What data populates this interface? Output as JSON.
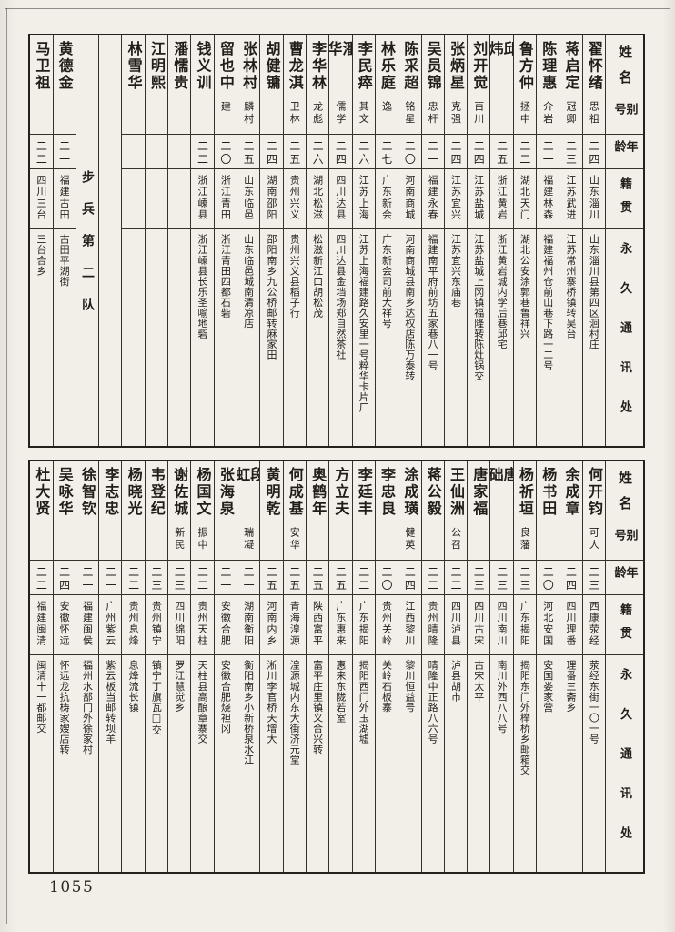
{
  "page": {
    "number": "1055"
  },
  "colors": {
    "paper": "#f2efe8",
    "ink": "#211e1a",
    "line": "#35322c",
    "frame": "#24211c"
  },
  "headers": {
    "name": "姓名",
    "alias": "别号",
    "age": "年龄",
    "native": "籍贯",
    "address": "永久通讯处"
  },
  "tables": [
    {
      "id": 0,
      "columns": [
        {
          "type": "person",
          "name": "翟怀绪",
          "alias": "思祖",
          "age": "二四",
          "native": "山东淄川",
          "address": "山东淄川县第四区洄村庄"
        },
        {
          "type": "person",
          "name": "蒋启定",
          "alias": "冠卿",
          "age": "二三",
          "native": "江苏武进",
          "address": "江苏常州寨桥镇转吴台"
        },
        {
          "type": "person",
          "name": "陈理惠",
          "alias": "介岩",
          "age": "二一",
          "native": "福建林森",
          "address": "福建福州仓前山巷下路一二号"
        },
        {
          "type": "person",
          "name": "鲁方仲",
          "alias": "拯中",
          "age": "二二",
          "native": "湖北天门",
          "address": "湖北公安涂郭巷鲁祥兴"
        },
        {
          "type": "person",
          "name": "邱炜",
          "alias": "",
          "age": "二五",
          "native": "浙江黄岩",
          "address": "浙江黄岩城内学后巷邱宅"
        },
        {
          "type": "person",
          "name": "刘开觉",
          "alias": "百川",
          "age": "二四",
          "native": "江苏盐城",
          "address": "江苏盐城上冈镇福隆转陈灶锅交"
        },
        {
          "type": "person",
          "name": "张炳星",
          "alias": "克强",
          "age": "二四",
          "native": "江苏宜兴",
          "address": "江苏宜兴东庙巷"
        },
        {
          "type": "person",
          "name": "吴员锦",
          "alias": "忠杆",
          "age": "二一",
          "native": "福建永春",
          "address": "福建南平府前坊五家巷八一号"
        },
        {
          "type": "person",
          "name": "陈采超",
          "alias": "铭星",
          "age": "二〇",
          "native": "河南商城",
          "address": "河南商城县南乡达权店陈万泰转"
        },
        {
          "type": "person",
          "name": "林乐庭",
          "alias": "逸",
          "age": "二七",
          "native": "广东新会",
          "address": "广东新会司前大祥号"
        },
        {
          "type": "person",
          "name": "李民瘁",
          "alias": "其文",
          "age": "二六",
          "native": "江苏上海",
          "address": "江苏上海福建路久安里一号粹华卡片厂"
        },
        {
          "type": "person",
          "name": "潘华",
          "alias": "儒学",
          "age": "二四",
          "native": "四川达县",
          "address": "四川达县金垱场郑自然茶社"
        },
        {
          "type": "person",
          "name": "李华林",
          "alias": "龙彪",
          "age": "二六",
          "native": "湖北松滋",
          "address": "松滋新江口胡松茂"
        },
        {
          "type": "person",
          "name": "曹龙淇",
          "alias": "卫林",
          "age": "二五",
          "native": "贵州兴义",
          "address": "贵州兴义县稻子行"
        },
        {
          "type": "person",
          "name": "胡健镛",
          "alias": "",
          "age": "二四",
          "native": "湖南邵阳",
          "address": "邵阳南乡九公桥邮转麻家田"
        },
        {
          "type": "person",
          "name": "张林村",
          "alias": "麟村",
          "age": "二五",
          "native": "山东临邑",
          "address": "山东临邑城南清凉店"
        },
        {
          "type": "person",
          "name": "留也中",
          "alias": "建",
          "age": "二〇",
          "native": "浙江青田",
          "address": "浙江青田四都石砦"
        },
        {
          "type": "person",
          "name": "钱义训",
          "alias": "",
          "age": "二二",
          "native": "浙江嵊县",
          "address": "浙江嵊县长乐圣喻地砦"
        },
        {
          "type": "person",
          "name": "潘懦贵",
          "alias": "",
          "age": "",
          "native": "",
          "address": ""
        },
        {
          "type": "person",
          "name": "江明熙",
          "alias": "",
          "age": "",
          "native": "",
          "address": ""
        },
        {
          "type": "person",
          "name": "林雪华",
          "alias": "",
          "age": "",
          "native": "",
          "address": ""
        },
        {
          "type": "empty"
        },
        {
          "type": "unit",
          "label": "步兵第二队"
        },
        {
          "type": "person",
          "name": "黄德金",
          "alias": "",
          "age": "二一",
          "native": "福建古田",
          "address": "古田平湖街"
        },
        {
          "type": "person",
          "name": "马卫祖",
          "alias": "",
          "age": "二二",
          "native": "四川三台",
          "address": "三台合乡"
        }
      ]
    },
    {
      "id": 1,
      "columns": [
        {
          "type": "person",
          "name": "何开钧",
          "alias": "可人",
          "age": "二三",
          "native": "西康荥经",
          "address": "荥经东街一〇一号"
        },
        {
          "type": "person",
          "name": "余成章",
          "alias": "",
          "age": "二四",
          "native": "四川理番",
          "address": "理番三斋乡"
        },
        {
          "type": "person",
          "name": "杨书田",
          "alias": "",
          "age": "二〇",
          "native": "河北安国",
          "address": "安国娄家营"
        },
        {
          "type": "person",
          "name": "杨祈垣",
          "alias": "良藩",
          "age": "二三",
          "native": "广东揭阳",
          "address": "揭阳东门外榉桥乡邮箱交"
        },
        {
          "type": "person",
          "name": "唐础",
          "alias": "",
          "age": "二三",
          "native": "四川南川",
          "address": "南川外西八八号"
        },
        {
          "type": "person",
          "name": "唐家福",
          "alias": "",
          "age": "二三",
          "native": "四川古宋",
          "address": "古宋太平"
        },
        {
          "type": "person",
          "name": "王仙洲",
          "alias": "公召",
          "age": "二二",
          "native": "四川泸县",
          "address": "泸县胡市"
        },
        {
          "type": "person",
          "name": "蒋公毅",
          "alias": "",
          "age": "二二",
          "native": "贵州晴隆",
          "address": "晴隆中正路八六号"
        },
        {
          "type": "person",
          "name": "涂成璜",
          "alias": "健英",
          "age": "二四",
          "native": "江西黎川",
          "address": "黎川恒益号"
        },
        {
          "type": "person",
          "name": "李忠良",
          "alias": "",
          "age": "二〇",
          "native": "贵州关岭",
          "address": "关岭石板寨"
        },
        {
          "type": "person",
          "name": "李廷丰",
          "alias": "",
          "age": "二二",
          "native": "广东揭阳",
          "address": "揭阳西门外玉湖墟"
        },
        {
          "type": "person",
          "name": "方立夫",
          "alias": "",
          "age": "二五",
          "native": "广东惠来",
          "address": "惠来东陇若室"
        },
        {
          "type": "person",
          "name": "奥鹤年",
          "alias": "",
          "age": "二五",
          "native": "陕西富平",
          "address": "富平庄里镇义合兴转"
        },
        {
          "type": "person",
          "name": "何成基",
          "alias": "安华",
          "age": "二五",
          "native": "青海湟源",
          "address": "湟源城内东大街济元堂"
        },
        {
          "type": "person",
          "name": "黄明乾",
          "alias": "",
          "age": "二五",
          "native": "河南内乡",
          "address": "淅川李官桥天增大"
        },
        {
          "type": "person",
          "name": "段虹",
          "alias": "瑞凝",
          "age": "二一",
          "native": "湖南衡阳",
          "address": "衡阳南乡小新桥泉水江"
        },
        {
          "type": "person",
          "name": "张海泉",
          "alias": "",
          "age": "二一",
          "native": "安徽合肥",
          "address": "安徽合肥烧袒冈"
        },
        {
          "type": "person",
          "name": "杨国文",
          "alias": "振中",
          "age": "二二",
          "native": "贵州天柱",
          "address": "天柱县高酿章寨交"
        },
        {
          "type": "person",
          "name": "谢佐城",
          "alias": "新民",
          "age": "二三",
          "native": "四川绵阳",
          "address": "罗江慧觉乡"
        },
        {
          "type": "person",
          "name": "韦登纪",
          "alias": "",
          "age": "二三",
          "native": "贵州镇宁",
          "address": "镇宁丁旗瓦□交"
        },
        {
          "type": "person",
          "name": "杨晓光",
          "alias": "",
          "age": "二二",
          "native": "贵州息烽",
          "address": "息烽流长镇"
        },
        {
          "type": "person",
          "name": "李志忠",
          "alias": "",
          "age": "二一",
          "native": "广州紫云",
          "address": "紫云板当邮转坝羊"
        },
        {
          "type": "person",
          "name": "徐智钦",
          "alias": "",
          "age": "二一",
          "native": "福建闽侯",
          "address": "福州水部门外徐家村"
        },
        {
          "type": "person",
          "name": "吴咏华",
          "alias": "",
          "age": "二四",
          "native": "安徽怀远",
          "address": "怀远龙抗梼家嫂店转"
        },
        {
          "type": "person",
          "name": "杜大贤",
          "alias": "",
          "age": "二二",
          "native": "福建闽清",
          "address": "闽清十一都邮交"
        }
      ]
    }
  ]
}
